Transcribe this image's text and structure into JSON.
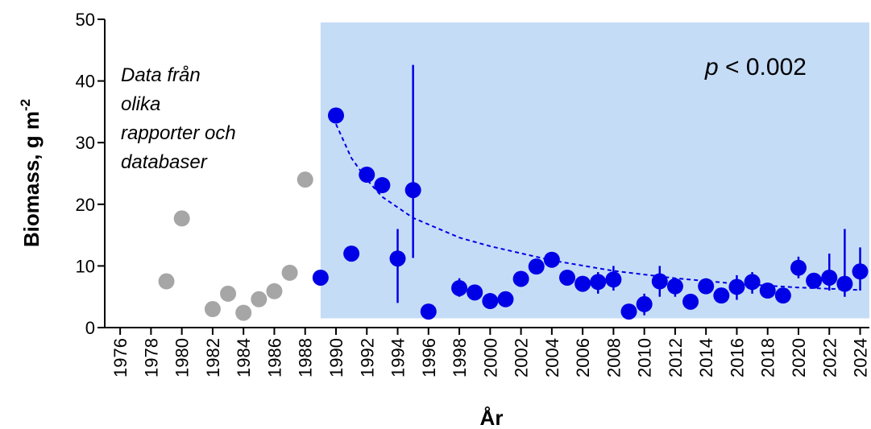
{
  "chart_data": {
    "type": "scatter",
    "xlabel": "År",
    "ylabel": "Biomass, g m",
    "ylabel_superscript": "-2",
    "xlim": [
      1975,
      2024.6
    ],
    "ylim": [
      0,
      50
    ],
    "yticks": [
      0,
      10,
      20,
      30,
      40,
      50
    ],
    "xticks": [
      1976,
      1978,
      1980,
      1982,
      1984,
      1986,
      1988,
      1990,
      1992,
      1994,
      1996,
      1998,
      2000,
      2002,
      2004,
      2006,
      2008,
      2010,
      2012,
      2014,
      2016,
      2018,
      2020,
      2022,
      2024
    ],
    "annotation": [
      "Data från",
      "olika",
      "rapporter och",
      "databaser"
    ],
    "p_value": {
      "prefix": "p",
      "text": " < 0.002"
    },
    "shaded_region": {
      "x_start": 1989,
      "x_end": 2024.6,
      "y_start": 1.5,
      "y_end": 49.5,
      "color": "#c5dcf7"
    },
    "series": [
      {
        "color": "#a6a6a6",
        "points": [
          {
            "x": 1979,
            "y": 7.5
          },
          {
            "x": 1980,
            "y": 17.7
          },
          {
            "x": 1982,
            "y": 3.0
          },
          {
            "x": 1983,
            "y": 5.5
          },
          {
            "x": 1984,
            "y": 2.4
          },
          {
            "x": 1985,
            "y": 4.6
          },
          {
            "x": 1986,
            "y": 5.9
          },
          {
            "x": 1987,
            "y": 8.9
          },
          {
            "x": 1988,
            "y": 24.0
          }
        ]
      },
      {
        "color": "#0000e6",
        "points": [
          {
            "x": 1989,
            "y": 8.1
          },
          {
            "x": 1990,
            "y": 34.4
          },
          {
            "x": 1991,
            "y": 12.0
          },
          {
            "x": 1992,
            "y": 24.8
          },
          {
            "x": 1993,
            "y": 23.1
          },
          {
            "x": 1994,
            "y": 11.2,
            "lo": 4.0,
            "hi": 16.0
          },
          {
            "x": 1995,
            "y": 22.3,
            "lo": 11.3,
            "hi": 42.6
          },
          {
            "x": 1996,
            "y": 2.6
          },
          {
            "x": 1998,
            "y": 6.4,
            "lo": 5.0,
            "hi": 8.0
          },
          {
            "x": 1999,
            "y": 5.7
          },
          {
            "x": 2000,
            "y": 4.3
          },
          {
            "x": 2001,
            "y": 4.6
          },
          {
            "x": 2002,
            "y": 7.9
          },
          {
            "x": 2003,
            "y": 9.9
          },
          {
            "x": 2004,
            "y": 11.0
          },
          {
            "x": 2005,
            "y": 8.1
          },
          {
            "x": 2006,
            "y": 7.1
          },
          {
            "x": 2007,
            "y": 7.4,
            "lo": 5.5,
            "hi": 9.0
          },
          {
            "x": 2008,
            "y": 7.8,
            "lo": 6.0,
            "hi": 10.0
          },
          {
            "x": 2009,
            "y": 2.6
          },
          {
            "x": 2010,
            "y": 3.8,
            "lo": 2.0,
            "hi": 5.5
          },
          {
            "x": 2011,
            "y": 7.5,
            "lo": 5.0,
            "hi": 10.0
          },
          {
            "x": 2012,
            "y": 6.7,
            "lo": 5.0,
            "hi": 8.0
          },
          {
            "x": 2013,
            "y": 4.2
          },
          {
            "x": 2014,
            "y": 6.7
          },
          {
            "x": 2015,
            "y": 5.2
          },
          {
            "x": 2016,
            "y": 6.6,
            "lo": 4.5,
            "hi": 8.5
          },
          {
            "x": 2017,
            "y": 7.4,
            "lo": 5.5,
            "hi": 9.0
          },
          {
            "x": 2018,
            "y": 6.0
          },
          {
            "x": 2019,
            "y": 5.2
          },
          {
            "x": 2020,
            "y": 9.7,
            "lo": 8.0,
            "hi": 11.5
          },
          {
            "x": 2021,
            "y": 7.6
          },
          {
            "x": 2022,
            "y": 8.1,
            "lo": 6.0,
            "hi": 12.0
          },
          {
            "x": 2023,
            "y": 7.1,
            "lo": 5.0,
            "hi": 16.0
          },
          {
            "x": 2024,
            "y": 9.1,
            "lo": 6.0,
            "hi": 13.0
          }
        ]
      }
    ],
    "trend_line": {
      "color": "#0000e6",
      "style": "dashed",
      "points": [
        {
          "x": 1990,
          "y": 33.0
        },
        {
          "x": 1991,
          "y": 27.5
        },
        {
          "x": 1992,
          "y": 24.0
        },
        {
          "x": 1993,
          "y": 21.2
        },
        {
          "x": 1995,
          "y": 17.8
        },
        {
          "x": 1998,
          "y": 14.6
        },
        {
          "x": 2000,
          "y": 13.2
        },
        {
          "x": 2004,
          "y": 10.9
        },
        {
          "x": 2008,
          "y": 9.2
        },
        {
          "x": 2012,
          "y": 8.0
        },
        {
          "x": 2016,
          "y": 7.1
        },
        {
          "x": 2020,
          "y": 6.5
        },
        {
          "x": 2024,
          "y": 6.1
        }
      ]
    }
  }
}
